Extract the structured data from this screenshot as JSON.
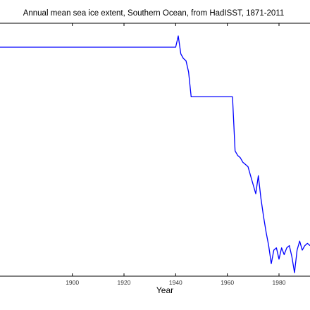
{
  "chart_data": {
    "type": "line",
    "title": "Annual mean sea ice extent, Southern Ocean, from HadISST, 1871-2011",
    "xlabel": "Year",
    "ylabel": "",
    "xlim": [
      1872,
      1992
    ],
    "ylim": [
      0,
      100
    ],
    "xticks": [
      1900,
      1920,
      1940,
      1960,
      1980
    ],
    "grid": false,
    "legend": "none",
    "line_color": "#0000ff",
    "series": [
      {
        "x": [
          1872,
          1940,
          1941,
          1942,
          1943,
          1944,
          1945,
          1946,
          1962,
          1963,
          1964,
          1965,
          1966,
          1967,
          1968,
          1969,
          1970,
          1971,
          1972,
          1973,
          1974,
          1975,
          1976,
          1977,
          1978,
          1979,
          1980,
          1981,
          1982,
          1983,
          1984,
          1985,
          1986,
          1987,
          1988,
          1989,
          1990,
          1991,
          1992
        ],
        "y": [
          100,
          100,
          105,
          97,
          95,
          94,
          89,
          78,
          78,
          54,
          52,
          51,
          49,
          48,
          47,
          43,
          39,
          35,
          43,
          33,
          25,
          18,
          12,
          4,
          10,
          11,
          6,
          11,
          8,
          11,
          12,
          7,
          0,
          10,
          14,
          10,
          12,
          13,
          12
        ]
      }
    ]
  }
}
